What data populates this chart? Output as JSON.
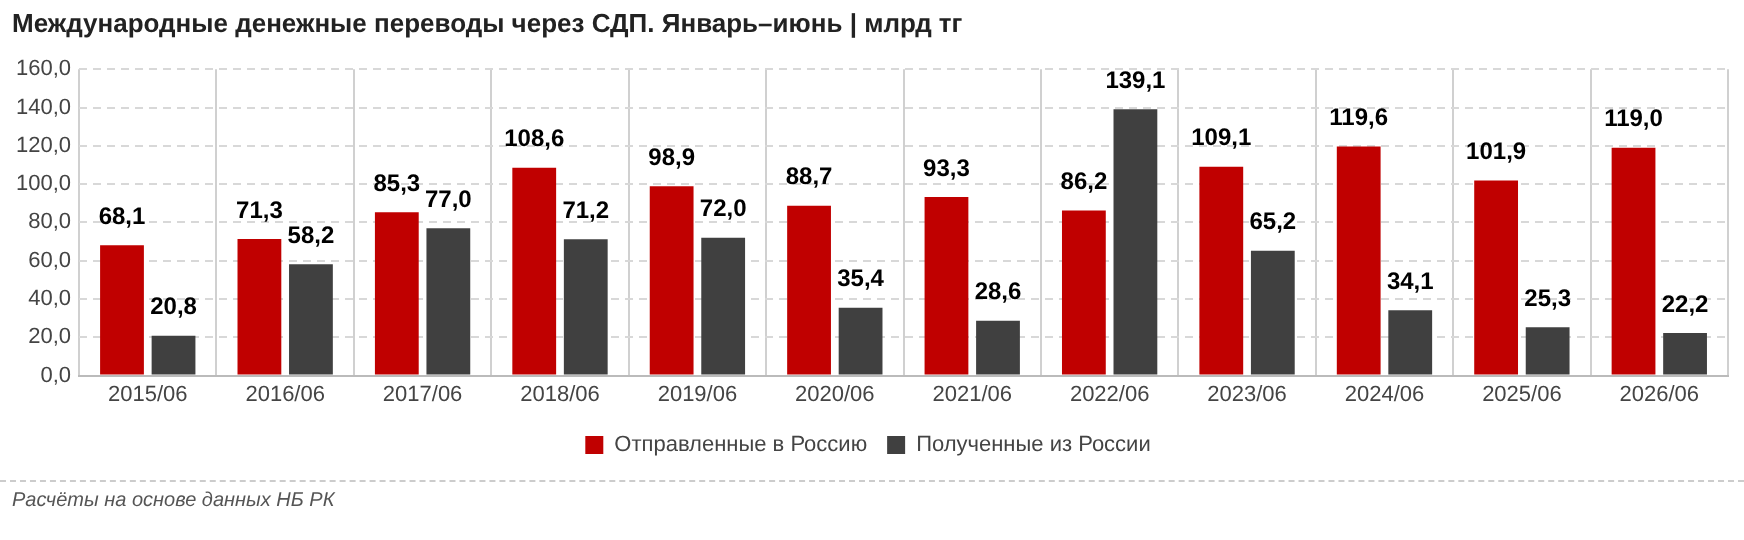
{
  "chart_data": {
    "type": "bar",
    "title": "Международные денежные переводы через СДП. Январь–июнь | млрд тг",
    "categories": [
      "2015/06",
      "2016/06",
      "2017/06",
      "2018/06",
      "2019/06",
      "2020/06",
      "2021/06",
      "2022/06",
      "2023/06",
      "2024/06",
      "2025/06",
      "2026/06"
    ],
    "series": [
      {
        "name": "Отправленные в Россию",
        "color": "#c00000",
        "values": [
          68.1,
          71.3,
          85.3,
          108.6,
          98.9,
          88.7,
          93.3,
          86.2,
          109.1,
          119.6,
          101.9,
          119.0
        ],
        "value_labels": [
          "68,1",
          "71,3",
          "85,3",
          "108,6",
          "98,9",
          "88,7",
          "93,3",
          "86,2",
          "109,1",
          "119,6",
          "101,9",
          "119,0"
        ]
      },
      {
        "name": "Полученные из России",
        "color": "#404040",
        "values": [
          20.8,
          58.2,
          77.0,
          71.2,
          72.0,
          35.4,
          28.6,
          139.1,
          65.2,
          34.1,
          25.3,
          22.2
        ],
        "value_labels": [
          "20,8",
          "58,2",
          "77,0",
          "71,2",
          "72,0",
          "35,4",
          "28,6",
          "139,1",
          "65,2",
          "34,1",
          "25,3",
          "22,2"
        ]
      }
    ],
    "ylim": [
      0,
      160
    ],
    "yticks": [
      {
        "value": 0,
        "label": "0,0"
      },
      {
        "value": 20,
        "label": "20,0"
      },
      {
        "value": 40,
        "label": "40,0"
      },
      {
        "value": 60,
        "label": "60,0"
      },
      {
        "value": 80,
        "label": "80,0"
      },
      {
        "value": 100,
        "label": "100,0"
      },
      {
        "value": 120,
        "label": "120,0"
      },
      {
        "value": 140,
        "label": "140,0"
      },
      {
        "value": 160,
        "label": "160,0"
      }
    ],
    "grid": true,
    "legend": "bottom",
    "annotations": [
      "Расчёты на основе данных НБ РК"
    ]
  }
}
